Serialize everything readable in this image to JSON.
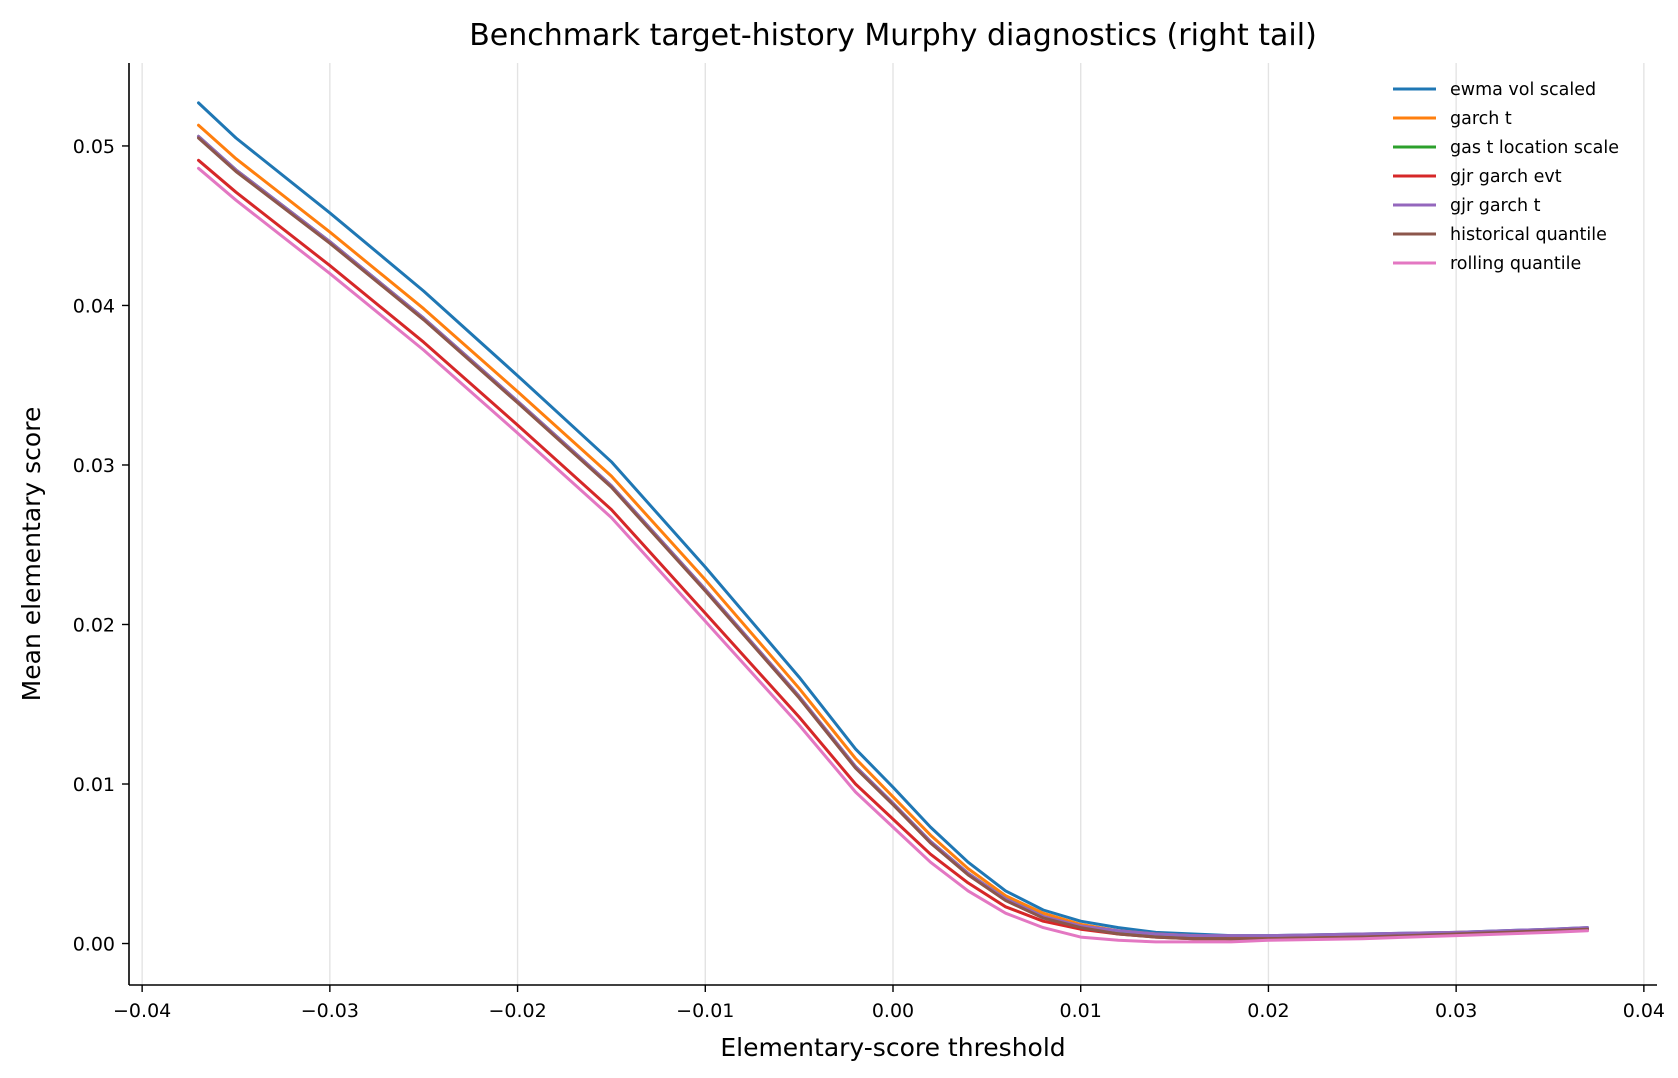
{
  "chart_data": {
    "type": "line",
    "title": "Benchmark target-history Murphy diagnostics (right tail)",
    "xlabel": "Elementary-score threshold",
    "ylabel": "Mean elementary score",
    "xlim": [
      -0.0407,
      0.0407
    ],
    "ylim": [
      -0.0026,
      0.0552
    ],
    "x_ticks": [
      -0.04,
      -0.03,
      -0.02,
      -0.01,
      0.0,
      0.01,
      0.02,
      0.03,
      0.04
    ],
    "x_tick_labels": [
      "−0.04",
      "−0.03",
      "−0.02",
      "−0.01",
      "0.00",
      "0.01",
      "0.02",
      "0.03",
      "0.04"
    ],
    "y_ticks": [
      0.0,
      0.01,
      0.02,
      0.03,
      0.04,
      0.05
    ],
    "y_tick_labels": [
      "0.00",
      "0.01",
      "0.02",
      "0.03",
      "0.04",
      "0.05"
    ],
    "grid": "x-only",
    "legend_position": "top-right",
    "x": [
      -0.037,
      -0.035,
      -0.03,
      -0.025,
      -0.02,
      -0.015,
      -0.01,
      -0.005,
      -0.002,
      0.0,
      0.002,
      0.004,
      0.006,
      0.008,
      0.01,
      0.012,
      0.014,
      0.016,
      0.018,
      0.02,
      0.025,
      0.03,
      0.035,
      0.037
    ],
    "series": [
      {
        "name": "ewma vol scaled",
        "color": "#1f77b4",
        "values": [
          0.0527,
          0.0505,
          0.0458,
          0.0409,
          0.0356,
          0.0302,
          0.0236,
          0.0167,
          0.0122,
          0.0098,
          0.0073,
          0.0051,
          0.0033,
          0.0021,
          0.0014,
          0.001,
          0.0007,
          0.0006,
          0.0005,
          0.0005,
          0.0006,
          0.0007,
          0.0009,
          0.001
        ]
      },
      {
        "name": "garch t",
        "color": "#ff7f0e",
        "values": [
          0.0513,
          0.0492,
          0.0446,
          0.0398,
          0.0346,
          0.0293,
          0.0228,
          0.016,
          0.0116,
          0.0092,
          0.0068,
          0.0047,
          0.003,
          0.0019,
          0.0012,
          0.0008,
          0.0006,
          0.0005,
          0.0004,
          0.0004,
          0.0005,
          0.0007,
          0.0008,
          0.0009
        ]
      },
      {
        "name": "gas t location scale",
        "color": "#2ca02c",
        "values": [
          0.0506,
          0.0485,
          0.044,
          0.0392,
          0.034,
          0.0287,
          0.0222,
          0.0155,
          0.0111,
          0.0088,
          0.0064,
          0.0044,
          0.0028,
          0.0017,
          0.001,
          0.0007,
          0.0005,
          0.0004,
          0.0003,
          0.0003,
          0.0004,
          0.0006,
          0.0008,
          0.0009
        ]
      },
      {
        "name": "gjr garch evt",
        "color": "#d62728",
        "values": [
          0.0491,
          0.0471,
          0.0425,
          0.0377,
          0.0325,
          0.0272,
          0.0207,
          0.0142,
          0.01,
          0.0078,
          0.0056,
          0.0038,
          0.0023,
          0.0014,
          0.0009,
          0.0006,
          0.0004,
          0.0003,
          0.0003,
          0.0003,
          0.0004,
          0.0006,
          0.0008,
          0.0009
        ]
      },
      {
        "name": "gjr garch t",
        "color": "#9467bd",
        "values": [
          0.0506,
          0.0485,
          0.044,
          0.0392,
          0.034,
          0.0287,
          0.0222,
          0.0155,
          0.0111,
          0.0088,
          0.0064,
          0.0044,
          0.0028,
          0.0017,
          0.0011,
          0.0008,
          0.0006,
          0.0005,
          0.0005,
          0.0005,
          0.0006,
          0.0007,
          0.0009,
          0.001
        ]
      },
      {
        "name": "historical quantile",
        "color": "#8c564b",
        "values": [
          0.0505,
          0.0484,
          0.0439,
          0.0391,
          0.0339,
          0.0286,
          0.0221,
          0.0154,
          0.011,
          0.0087,
          0.0063,
          0.0043,
          0.0027,
          0.0016,
          0.001,
          0.0006,
          0.0004,
          0.0003,
          0.0003,
          0.0003,
          0.0004,
          0.0006,
          0.0008,
          0.0009
        ]
      },
      {
        "name": "rolling quantile",
        "color": "#e377c2",
        "values": [
          0.0486,
          0.0466,
          0.042,
          0.0372,
          0.032,
          0.0267,
          0.0202,
          0.0137,
          0.0095,
          0.0073,
          0.0051,
          0.0033,
          0.0019,
          0.001,
          0.0004,
          0.0002,
          0.0001,
          0.0001,
          0.0001,
          0.0002,
          0.0003,
          0.0005,
          0.0007,
          0.0008
        ]
      }
    ]
  }
}
